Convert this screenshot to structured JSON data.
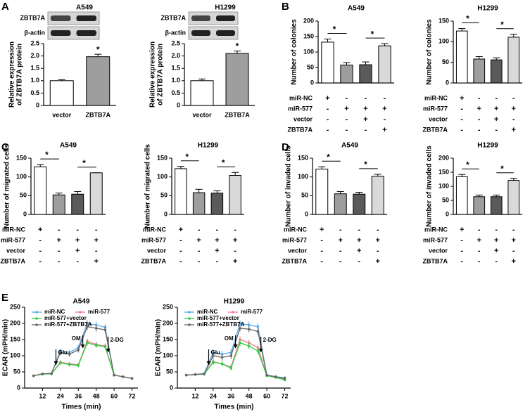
{
  "chart_data": [
    {
      "type": "bar",
      "panel": "A",
      "title": "A549",
      "blot_labels": [
        "ZBTB7A",
        "β-actin"
      ],
      "ylabel": [
        "Relative expression",
        "of ZBTB7A protein"
      ],
      "categories": [
        "vector",
        "ZBTB7A"
      ],
      "values": [
        1.0,
        1.97
      ],
      "errors": [
        0.04,
        0.1
      ],
      "colors": [
        "#ffffff",
        "#9e9e9e"
      ],
      "ylim": [
        0,
        2.5
      ],
      "yticks": [
        0,
        0.5,
        {
          "value": 1,
          "label": "1.0"
        },
        1.5,
        {
          "value": 2,
          "label": "2.0"
        },
        2.5
      ],
      "significance": [
        "*"
      ]
    },
    {
      "type": "bar",
      "title": "H1299",
      "blot_labels": [
        "ZBTB7A",
        "β-actin"
      ],
      "ylabel": [
        "Relative expression",
        "of ZBTB7A protein"
      ],
      "categories": [
        "vector",
        "ZBTB7A"
      ],
      "values": [
        1.0,
        2.1
      ],
      "errors": [
        0.07,
        0.1
      ],
      "colors": [
        "#ffffff",
        "#9e9e9e"
      ],
      "ylim": [
        0,
        2.5
      ],
      "yticks": [
        0,
        0.5,
        {
          "value": 1,
          "label": "1.0"
        },
        1.5,
        {
          "value": 2,
          "label": "2.0"
        },
        2.5
      ],
      "significance": [
        "*"
      ]
    },
    {
      "type": "bar",
      "panel": "B",
      "title": "A549",
      "ylabel": [
        "Number of colonies"
      ],
      "values": [
        132,
        58,
        59,
        120
      ],
      "errors": [
        10,
        8,
        9,
        7
      ],
      "colors": [
        "#ffffff",
        "#9e9e9e",
        "#5a5a5a",
        "#d9d9d9"
      ],
      "ylim": [
        0,
        200
      ],
      "yticks": [
        0,
        50,
        100,
        150,
        200
      ],
      "significance": [
        "*",
        "*"
      ],
      "conditions": [
        {
          "name": "miR-NC",
          "signs": [
            "+",
            "-",
            "-",
            "-"
          ]
        },
        {
          "name": "miR-577",
          "signs": [
            "-",
            "+",
            "+",
            "+"
          ]
        },
        {
          "name": "vector",
          "signs": [
            "-",
            "-",
            "+",
            "-"
          ]
        },
        {
          "name": "ZBTB7A",
          "signs": [
            "-",
            "-",
            "-",
            "+"
          ]
        }
      ]
    },
    {
      "type": "bar",
      "title": "H1299",
      "ylabel": [
        "Number of colonies"
      ],
      "values": [
        126,
        58,
        56,
        111
      ],
      "errors": [
        6,
        6,
        5,
        7
      ],
      "colors": [
        "#ffffff",
        "#9e9e9e",
        "#5a5a5a",
        "#d9d9d9"
      ],
      "ylim": [
        0,
        150
      ],
      "yticks": [
        0,
        50,
        100,
        150
      ],
      "significance": [
        "*",
        "*"
      ],
      "conditions": [
        {
          "name": "miR-NC",
          "signs": [
            "+",
            "-",
            "-",
            "-"
          ]
        },
        {
          "name": "miR-577",
          "signs": [
            "-",
            "+",
            "+",
            "+"
          ]
        },
        {
          "name": "vector",
          "signs": [
            "-",
            "-",
            "+",
            "-"
          ]
        },
        {
          "name": "ZBTB7A",
          "signs": [
            "-",
            "-",
            "-",
            "+"
          ]
        }
      ]
    },
    {
      "type": "bar",
      "panel": "C",
      "title": "A549",
      "ylabel": [
        "Number of migrated cells"
      ],
      "values": [
        127,
        52,
        54,
        111
      ],
      "errors": [
        6,
        5,
        7,
        0
      ],
      "colors": [
        "#ffffff",
        "#9e9e9e",
        "#5a5a5a",
        "#d9d9d9"
      ],
      "ylim": [
        0,
        150
      ],
      "yticks": [
        0,
        50,
        100,
        150
      ],
      "significance": [
        "*",
        "*"
      ],
      "conditions": [
        {
          "name": "miR-NC",
          "signs": [
            "+",
            "-",
            "-",
            "-"
          ]
        },
        {
          "name": "miR-577",
          "signs": [
            "-",
            "+",
            "+",
            "+"
          ]
        },
        {
          "name": "vector",
          "signs": [
            "-",
            "-",
            "+",
            "-"
          ]
        },
        {
          "name": "ZBTB7A",
          "signs": [
            "-",
            "-",
            "-",
            "+"
          ]
        }
      ]
    },
    {
      "type": "bar",
      "title": "H1299",
      "ylabel": [
        "Number of migrated cells"
      ],
      "values": [
        122,
        58,
        57,
        104
      ],
      "errors": [
        6,
        9,
        6,
        8
      ],
      "colors": [
        "#ffffff",
        "#9e9e9e",
        "#5a5a5a",
        "#d9d9d9"
      ],
      "ylim": [
        0,
        150
      ],
      "yticks": [
        0,
        50,
        100,
        150
      ],
      "significance": [
        "*",
        "*"
      ],
      "conditions": [
        {
          "name": "miR-NC",
          "signs": [
            "+",
            "-",
            "-",
            "-"
          ]
        },
        {
          "name": "miR-577",
          "signs": [
            "-",
            "+",
            "+",
            "+"
          ]
        },
        {
          "name": "vector",
          "signs": [
            "-",
            "-",
            "+",
            "-"
          ]
        },
        {
          "name": "ZBTB7A",
          "signs": [
            "-",
            "-",
            "-",
            "+"
          ]
        }
      ]
    },
    {
      "type": "bar",
      "panel": "D",
      "title": "A549",
      "ylabel": [
        "Number of invaded cells"
      ],
      "values": [
        121,
        55,
        54,
        102
      ],
      "errors": [
        6,
        6,
        5,
        5
      ],
      "colors": [
        "#ffffff",
        "#9e9e9e",
        "#5a5a5a",
        "#d9d9d9"
      ],
      "ylim": [
        0,
        150
      ],
      "yticks": [
        0,
        50,
        100,
        150
      ],
      "significance": [
        "*",
        "*"
      ],
      "conditions": [
        {
          "name": "miR-NC",
          "signs": [
            "+",
            "-",
            "-",
            "-"
          ]
        },
        {
          "name": "miR-577",
          "signs": [
            "-",
            "+",
            "+",
            "+"
          ]
        },
        {
          "name": "vector",
          "signs": [
            "-",
            "-",
            "+",
            "-"
          ]
        },
        {
          "name": "ZBTB7A",
          "signs": [
            "-",
            "-",
            "-",
            "+"
          ]
        }
      ]
    },
    {
      "type": "bar",
      "title": "H1299",
      "ylabel": [
        "Number of invaded cells"
      ],
      "values": [
        134,
        63,
        63,
        121
      ],
      "errors": [
        8,
        6,
        6,
        7
      ],
      "colors": [
        "#ffffff",
        "#9e9e9e",
        "#5a5a5a",
        "#d9d9d9"
      ],
      "ylim": [
        0,
        200
      ],
      "yticks": [
        0,
        50,
        100,
        150,
        200
      ],
      "significance": [
        "*",
        "*"
      ],
      "conditions": [
        {
          "name": "miR-NC",
          "signs": [
            "+",
            "-",
            "-",
            "-"
          ]
        },
        {
          "name": "miR-577",
          "signs": [
            "-",
            "+",
            "+",
            "+"
          ]
        },
        {
          "name": "vector",
          "signs": [
            "-",
            "-",
            "+",
            "-"
          ]
        },
        {
          "name": "ZBTB7A",
          "signs": [
            "-",
            "-",
            "-",
            "+"
          ]
        }
      ]
    },
    {
      "type": "line",
      "panel": "E",
      "title": "A549",
      "xlabel": "Times (min)",
      "ylabel": "ECAR (mPH/min)",
      "x": [
        6,
        12,
        18,
        24,
        30,
        36,
        42,
        48,
        54,
        60,
        66,
        72
      ],
      "xlim": [
        0,
        76
      ],
      "xticks": [
        12,
        24,
        36,
        48,
        60,
        72
      ],
      "ylim": [
        0,
        250
      ],
      "yticks": [
        0,
        50,
        100,
        150,
        200,
        250
      ],
      "series": [
        {
          "name": "miR-NC",
          "color": "#5aa9e6",
          "values": [
            38,
            44,
            45,
            115,
            110,
            125,
            200,
            195,
            188,
            40,
            35,
            30
          ],
          "errors": [
            3,
            3,
            3,
            8,
            8,
            8,
            10,
            10,
            10,
            4,
            3,
            3
          ]
        },
        {
          "name": "miR-577",
          "color": "#f07c8f",
          "values": [
            38,
            44,
            44,
            80,
            75,
            72,
            145,
            135,
            130,
            40,
            35,
            30
          ],
          "errors": [
            3,
            3,
            3,
            6,
            6,
            6,
            8,
            8,
            8,
            4,
            3,
            3
          ]
        },
        {
          "name": "miR-577+vector",
          "color": "#2ecc40",
          "values": [
            38,
            43,
            44,
            78,
            73,
            70,
            140,
            132,
            128,
            40,
            35,
            30
          ],
          "errors": [
            3,
            3,
            3,
            6,
            6,
            6,
            8,
            8,
            8,
            4,
            3,
            3
          ]
        },
        {
          "name": "miR-577+ZBTB7A",
          "color": "#666666",
          "values": [
            38,
            44,
            45,
            110,
            105,
            118,
            190,
            185,
            180,
            40,
            35,
            30
          ],
          "errors": [
            3,
            3,
            3,
            8,
            8,
            8,
            10,
            10,
            10,
            4,
            3,
            3
          ]
        }
      ],
      "annotations": [
        {
          "text": "Glu",
          "x": 21
        },
        {
          "text": "OM",
          "x": 39
        },
        {
          "text": "2-DG",
          "x": 56
        }
      ]
    },
    {
      "type": "line",
      "title": "H1299",
      "xlabel": "Times (min)",
      "ylabel": "ECAR (mPH/min)",
      "x": [
        6,
        12,
        18,
        24,
        30,
        36,
        42,
        48,
        54,
        60,
        66,
        72
      ],
      "xlim": [
        0,
        76
      ],
      "xticks": [
        12,
        24,
        36,
        48,
        60,
        72
      ],
      "ylim": [
        0,
        250
      ],
      "yticks": [
        0,
        50,
        100,
        150,
        200,
        250
      ],
      "series": [
        {
          "name": "miR-NC",
          "color": "#5aa9e6",
          "values": [
            40,
            42,
            45,
            110,
            105,
            110,
            200,
            195,
            190,
            40,
            35,
            32
          ],
          "errors": [
            4,
            4,
            4,
            10,
            10,
            10,
            10,
            10,
            10,
            4,
            4,
            4
          ]
        },
        {
          "name": "miR-577",
          "color": "#f07c8f",
          "values": [
            40,
            42,
            43,
            82,
            75,
            65,
            150,
            140,
            125,
            40,
            35,
            28
          ],
          "errors": [
            4,
            4,
            4,
            8,
            8,
            8,
            10,
            10,
            10,
            4,
            4,
            4
          ]
        },
        {
          "name": "miR-577+vector",
          "color": "#2ecc40",
          "values": [
            40,
            42,
            43,
            80,
            75,
            62,
            140,
            130,
            115,
            38,
            33,
            25
          ],
          "errors": [
            4,
            4,
            4,
            8,
            8,
            8,
            10,
            10,
            10,
            4,
            4,
            4
          ]
        },
        {
          "name": "miR-577+ZBTB7A",
          "color": "#666666",
          "values": [
            40,
            42,
            44,
            100,
            95,
            100,
            185,
            182,
            175,
            40,
            35,
            30
          ],
          "errors": [
            4,
            4,
            4,
            10,
            10,
            10,
            10,
            10,
            10,
            4,
            4,
            4
          ]
        }
      ],
      "annotations": [
        {
          "text": "Glu",
          "x": 21
        },
        {
          "text": "OM",
          "x": 39
        },
        {
          "text": "2-DG",
          "x": 56
        }
      ]
    }
  ]
}
